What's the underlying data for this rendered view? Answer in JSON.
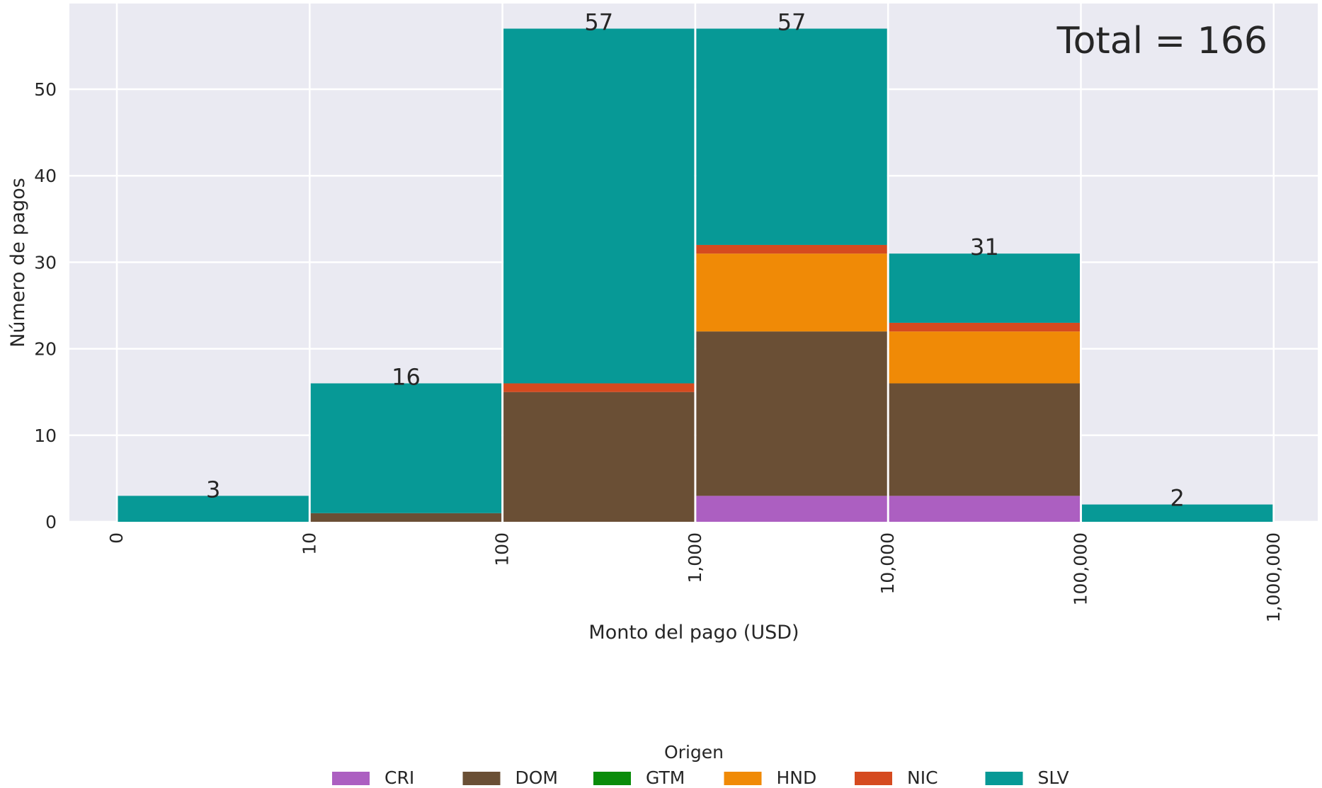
{
  "chart_data": {
    "type": "bar",
    "stacked": true,
    "xlabel": "Monto del pago (USD)",
    "ylabel": "Número de pagos",
    "xscale": "log bins",
    "ylim": [
      0,
      60
    ],
    "yticks": [
      0,
      10,
      20,
      30,
      40,
      50
    ],
    "grid": true,
    "bin_edges": [
      "0",
      "10",
      "100",
      "1,000",
      "10,000",
      "100,000",
      "1,000,000"
    ],
    "categories": [
      "0–10",
      "10–100",
      "100–1,000",
      "1,000–10,000",
      "10,000–100,000",
      "100,000–1,000,000"
    ],
    "series": [
      {
        "name": "CRI",
        "color": "#ac5fc1",
        "values": [
          0,
          0,
          0,
          3,
          3,
          0
        ]
      },
      {
        "name": "DOM",
        "color": "#6a4f35",
        "values": [
          0,
          1,
          15,
          19,
          13,
          0
        ]
      },
      {
        "name": "GTM",
        "color": "#0a8c0a",
        "values": [
          0,
          0,
          0,
          0,
          0,
          0
        ]
      },
      {
        "name": "HND",
        "color": "#f08a06",
        "values": [
          0,
          0,
          0,
          9,
          6,
          0
        ]
      },
      {
        "name": "NIC",
        "color": "#d54a1f",
        "values": [
          0,
          0,
          1,
          1,
          1,
          0
        ]
      },
      {
        "name": "SLV",
        "color": "#079996",
        "values": [
          3,
          15,
          41,
          25,
          8,
          2
        ]
      }
    ],
    "totals": [
      3,
      16,
      57,
      57,
      31,
      2
    ],
    "total_label": "Total = 166",
    "legend": {
      "title": "Origen",
      "placement": "bottom-center"
    }
  }
}
